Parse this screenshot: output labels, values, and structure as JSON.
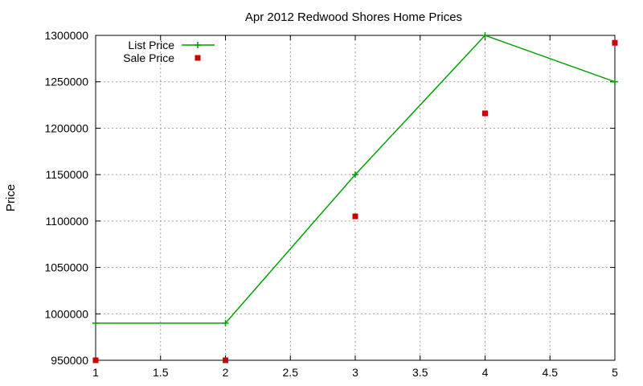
{
  "chart_data": {
    "type": "line",
    "title": "Apr 2012 Redwood Shores Home Prices",
    "xlabel": "",
    "ylabel": "Price",
    "xlim": [
      1,
      5
    ],
    "ylim": [
      950000,
      1300000
    ],
    "x_ticks": [
      "1",
      "1.5",
      "2",
      "2.5",
      "3",
      "3.5",
      "4",
      "4.5",
      "5"
    ],
    "y_ticks": [
      "950000",
      "1000000",
      "1050000",
      "1100000",
      "1150000",
      "1200000",
      "1250000",
      "1300000"
    ],
    "grid": true,
    "legend_position": "top-left",
    "series": [
      {
        "name": "List Price",
        "style": "lines+points",
        "color": "#00a000",
        "x": [
          1,
          2,
          3,
          4,
          5
        ],
        "y": [
          990000,
          990000,
          1150000,
          1300000,
          1250000
        ]
      },
      {
        "name": "Sale Price",
        "style": "points",
        "color": "#cc0000",
        "x": [
          1,
          2,
          3,
          4,
          5
        ],
        "y": [
          950000,
          950000,
          1105000,
          1216000,
          1292000
        ]
      }
    ]
  }
}
